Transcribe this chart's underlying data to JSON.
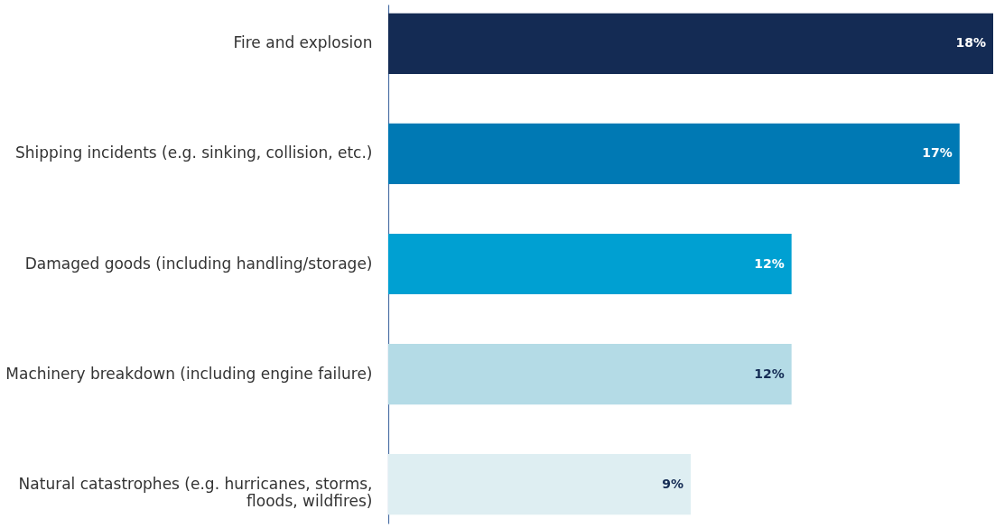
{
  "chart_data": {
    "type": "bar",
    "orientation": "horizontal",
    "categories": [
      "Fire and explosion",
      "Shipping incidents (e.g. sinking, collision, etc.)",
      "Damaged goods (including handling/storage)",
      "Machinery breakdown (including engine failure)",
      "Natural catastrophes (e.g. hurricanes, storms, floods, wildfires)"
    ],
    "values": [
      18,
      17,
      12,
      12,
      9
    ],
    "value_labels": [
      "18%",
      "17%",
      "12%",
      "12%",
      "9%"
    ],
    "colors": [
      "#142b54",
      "#0079b4",
      "#00a0d2",
      "#b4dbe6",
      "#deeef2"
    ]
  }
}
